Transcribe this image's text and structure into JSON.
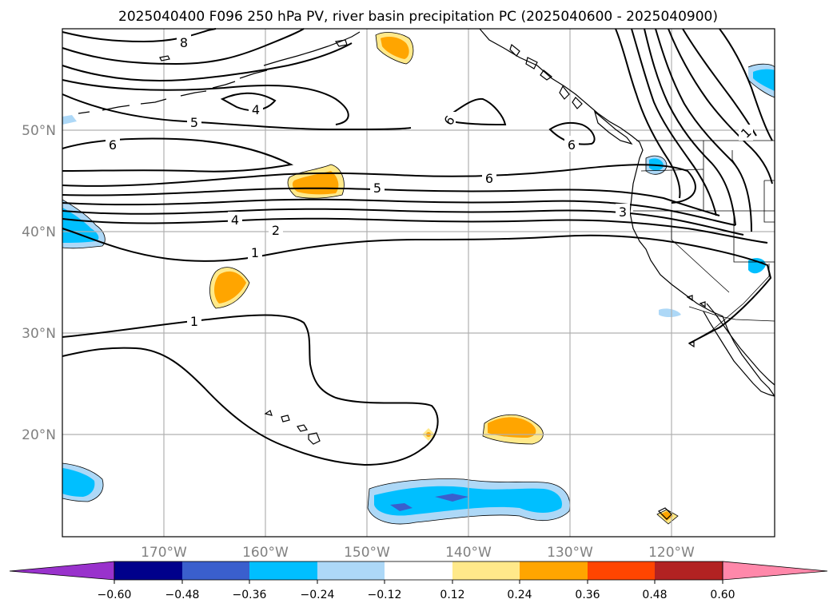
{
  "title": "2025040400 F096 250 hPa PV, river basin precipitation PC (2025040600 - 2025040900)",
  "map": {
    "lat_labels": [
      "50°N",
      "40°N",
      "30°N",
      "20°N"
    ],
    "lon_labels": [
      "170°W",
      "160°W",
      "150°W",
      "140°W",
      "130°W",
      "120°W"
    ],
    "contour_labels": [
      "8",
      "4",
      "5",
      "6",
      "6",
      "6",
      "6",
      "5",
      "4",
      "2",
      "1",
      "1",
      "3",
      "1"
    ]
  },
  "colorbar": {
    "ticks": [
      "−0.60",
      "−0.48",
      "−0.36",
      "−0.24",
      "−0.12",
      "0.12",
      "0.24",
      "0.36",
      "0.48",
      "0.60"
    ],
    "colors": [
      "#9932cc",
      "#00008b",
      "#3a5fcd",
      "#00bfff",
      "#add8f7",
      "#ffffff",
      "#ffe98a",
      "#ffa500",
      "#ff4500",
      "#b22222",
      "#ff88aa"
    ]
  }
}
